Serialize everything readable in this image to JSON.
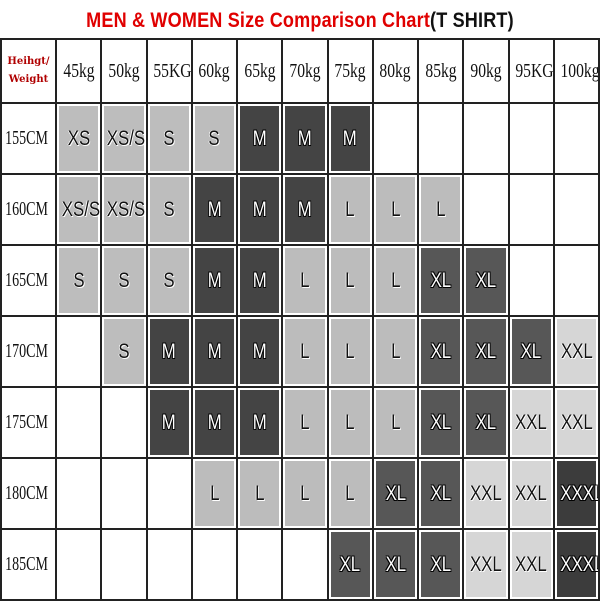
{
  "title": {
    "part1": "MEN & WOMEN Size Comparison Chart",
    "part2": "(T SHIRT)"
  },
  "chart_data": {
    "type": "table",
    "corner_label": [
      "Heihgt/",
      "Weight"
    ],
    "columns": [
      "45kg",
      "50kg",
      "55KG",
      "60kg",
      "65kg",
      "70kg",
      "75kg",
      "80kg",
      "85kg",
      "90kg",
      "95KG",
      "100kg"
    ],
    "rows": [
      {
        "height": "155CM",
        "sizes": [
          "XS",
          "XS/S",
          "S",
          "S",
          "M",
          "M",
          "M",
          "",
          "",
          "",
          "",
          ""
        ]
      },
      {
        "height": "160CM",
        "sizes": [
          "XS/S",
          "XS/S",
          "S",
          "M",
          "M",
          "M",
          "L",
          "L",
          "L",
          "",
          "",
          ""
        ]
      },
      {
        "height": "165CM",
        "sizes": [
          "S",
          "S",
          "S",
          "M",
          "M",
          "L",
          "L",
          "L",
          "XL",
          "XL",
          "",
          ""
        ]
      },
      {
        "height": "170CM",
        "sizes": [
          "",
          "S",
          "M",
          "M",
          "M",
          "L",
          "L",
          "L",
          "XL",
          "XL",
          "XL",
          "XXL"
        ]
      },
      {
        "height": "175CM",
        "sizes": [
          "",
          "",
          "M",
          "M",
          "M",
          "L",
          "L",
          "L",
          "XL",
          "XL",
          "XXL",
          "XXL"
        ]
      },
      {
        "height": "180CM",
        "sizes": [
          "",
          "",
          "",
          "L",
          "L",
          "L",
          "L",
          "XL",
          "XL",
          "XXL",
          "XXL",
          "XXXL"
        ]
      },
      {
        "height": "185CM",
        "sizes": [
          "",
          "",
          "",
          "",
          "",
          "",
          "XL",
          "XL",
          "XL",
          "XXL",
          "XXL",
          "XXXL"
        ]
      }
    ],
    "size_colors": {
      "XS": "#bdbdbd",
      "XS/S": "#bdbdbd",
      "S": "#bdbdbd",
      "M": "#444444",
      "L": "#bcbcbc",
      "XL": "#575757",
      "XXL": "#d6d6d6",
      "XXXL": "#3c3c3c"
    },
    "dark_sizes": [
      "M",
      "XL",
      "XXXL"
    ]
  }
}
